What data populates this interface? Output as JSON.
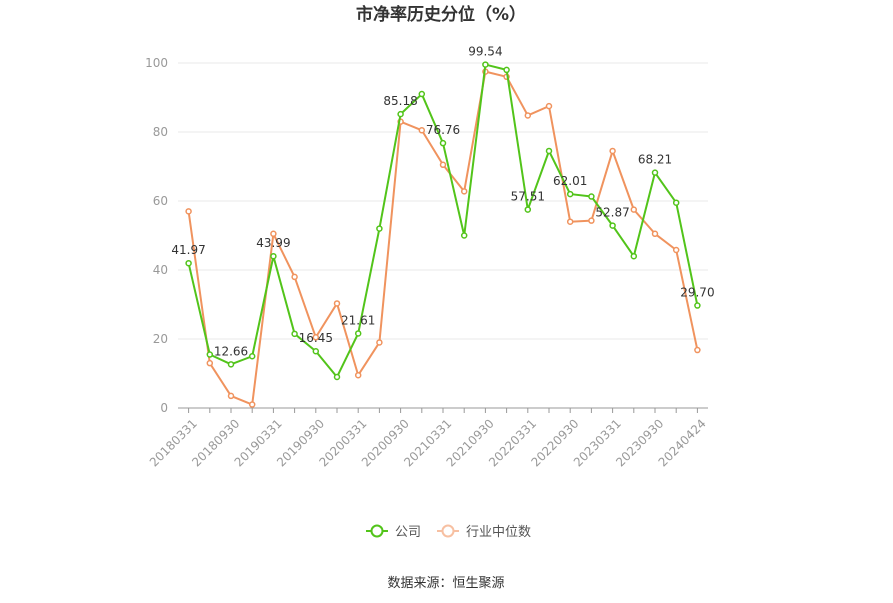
{
  "chart_data": {
    "type": "line",
    "title": "市净率历史分位（%）",
    "source": "数据来源：恒生聚源",
    "ylim": [
      0,
      100
    ],
    "yticks": [
      0,
      20,
      40,
      60,
      80,
      100
    ],
    "grid": true,
    "legend_position": "bottom",
    "x": [
      "20180331",
      "20180630",
      "20180930",
      "20181231",
      "20190331",
      "20190630",
      "20190930",
      "20191231",
      "20200331",
      "20200630",
      "20200930",
      "20201231",
      "20210331",
      "20210630",
      "20210930",
      "20211231",
      "20220331",
      "20220630",
      "20220930",
      "20221231",
      "20230331",
      "20230630",
      "20230930",
      "20231231",
      "20240424"
    ],
    "xtick_labels": [
      "20180331",
      "20180930",
      "20190331",
      "20190930",
      "20200331",
      "20200930",
      "20210331",
      "20210930",
      "20220331",
      "20220930",
      "20230331",
      "20230930",
      "20240424"
    ],
    "series": [
      {
        "name": "公司",
        "color": "#52c41a",
        "values": [
          41.97,
          15.5,
          12.66,
          15.0,
          43.99,
          21.5,
          16.45,
          9.0,
          21.61,
          52.0,
          85.18,
          91.0,
          76.76,
          50.0,
          99.54,
          98.0,
          57.51,
          74.5,
          62.01,
          61.3,
          52.87,
          44.0,
          68.21,
          59.5,
          29.7
        ],
        "labels": {
          "0": "41.97",
          "2": "12.66",
          "4": "43.99",
          "6": "16.45",
          "8": "21.61",
          "10": "85.18",
          "12": "76.76",
          "14": "99.54",
          "16": "57.51",
          "18": "62.01",
          "20": "52.87",
          "22": "68.21",
          "24": "29.70"
        }
      },
      {
        "name": "行业中位数",
        "color": "#f0935e",
        "values": [
          57.0,
          13.0,
          3.5,
          1.0,
          50.5,
          38.0,
          20.5,
          30.3,
          9.5,
          19.0,
          83.0,
          80.5,
          70.5,
          62.8,
          97.5,
          96.0,
          84.8,
          87.5,
          54.0,
          54.3,
          74.5,
          57.5,
          50.5,
          45.8,
          16.8
        ]
      }
    ]
  }
}
